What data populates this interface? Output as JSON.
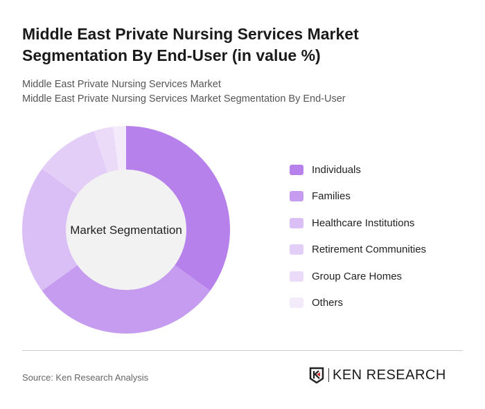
{
  "title": "Middle East Private Nursing Services Market Segmentation By End-User (in value %)",
  "subtitle_1": "Middle East Private Nursing Services Market",
  "subtitle_2": "Middle East Private Nursing Services Market Segmentation By End-User",
  "source": "Source: Ken Research Analysis",
  "logo_text": "KEN RESEARCH",
  "chart_data": {
    "type": "pie",
    "variant": "donut",
    "center_label": "Market Segmentation",
    "categories": [
      "Individuals",
      "Families",
      "Healthcare Institutions",
      "Retirement Communities",
      "Group Care Homes",
      "Others"
    ],
    "values": [
      35,
      30,
      20,
      10,
      3,
      2
    ],
    "colors": [
      "#b681ea",
      "#c59cef",
      "#d9bff5",
      "#e3cef7",
      "#ebdbf9",
      "#f3eafc"
    ],
    "legend_position": "right"
  }
}
